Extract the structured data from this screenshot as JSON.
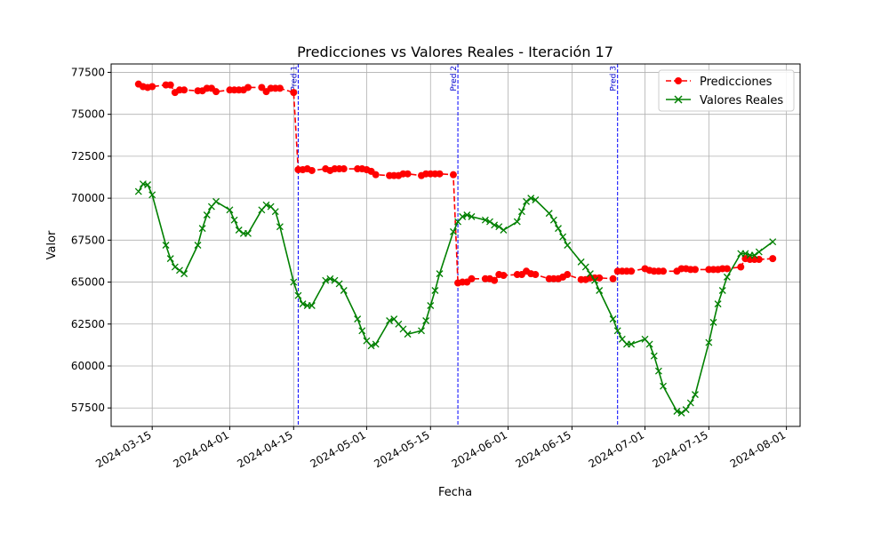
{
  "chart_data": {
    "type": "line",
    "title": "Predicciones vs Valores Reales - Iteración 17",
    "xlabel": "Fecha",
    "ylabel": "Valor",
    "xlim": [
      "2024-03-06",
      "2024-08-04"
    ],
    "ylim": [
      56400,
      78000
    ],
    "grid": true,
    "legend_position": "top-right",
    "x_ticks": [
      "2024-03-15",
      "2024-04-01",
      "2024-04-15",
      "2024-05-01",
      "2024-05-15",
      "2024-06-01",
      "2024-06-15",
      "2024-07-01",
      "2024-07-15",
      "2024-08-01"
    ],
    "y_ticks": [
      57500,
      60000,
      62500,
      65000,
      67500,
      70000,
      72500,
      75000,
      77500
    ],
    "vertical_lines": [
      {
        "date": "2024-04-16",
        "label": "Pred 1",
        "color": "#0000ff"
      },
      {
        "date": "2024-05-21",
        "label": "Pred 2",
        "color": "#0000ff"
      },
      {
        "date": "2024-06-25",
        "label": "Pred 3",
        "color": "#0000ff"
      }
    ],
    "series": [
      {
        "name": "Predicciones",
        "color": "#ff0000",
        "style": "dashed",
        "marker": "circle",
        "points": [
          [
            "2024-03-12",
            76800
          ],
          [
            "2024-03-13",
            76650
          ],
          [
            "2024-03-14",
            76600
          ],
          [
            "2024-03-15",
            76650
          ],
          [
            "2024-03-18",
            76750
          ],
          [
            "2024-03-19",
            76750
          ],
          [
            "2024-03-20",
            76300
          ],
          [
            "2024-03-21",
            76450
          ],
          [
            "2024-03-22",
            76450
          ],
          [
            "2024-03-25",
            76400
          ],
          [
            "2024-03-26",
            76400
          ],
          [
            "2024-03-27",
            76550
          ],
          [
            "2024-03-28",
            76550
          ],
          [
            "2024-03-29",
            76350
          ],
          [
            "2024-04-01",
            76450
          ],
          [
            "2024-04-02",
            76450
          ],
          [
            "2024-04-03",
            76450
          ],
          [
            "2024-04-04",
            76450
          ],
          [
            "2024-04-05",
            76600
          ],
          [
            "2024-04-08",
            76600
          ],
          [
            "2024-04-09",
            76350
          ],
          [
            "2024-04-10",
            76550
          ],
          [
            "2024-04-11",
            76550
          ],
          [
            "2024-04-12",
            76550
          ],
          [
            "2024-04-15",
            76300
          ],
          [
            "2024-04-16",
            71700
          ],
          [
            "2024-04-17",
            71700
          ],
          [
            "2024-04-18",
            71750
          ],
          [
            "2024-04-19",
            71650
          ],
          [
            "2024-04-22",
            71750
          ],
          [
            "2024-04-23",
            71650
          ],
          [
            "2024-04-24",
            71750
          ],
          [
            "2024-04-25",
            71750
          ],
          [
            "2024-04-26",
            71750
          ],
          [
            "2024-04-29",
            71750
          ],
          [
            "2024-04-30",
            71750
          ],
          [
            "2024-05-01",
            71700
          ],
          [
            "2024-05-02",
            71600
          ],
          [
            "2024-05-03",
            71400
          ],
          [
            "2024-05-06",
            71350
          ],
          [
            "2024-05-07",
            71350
          ],
          [
            "2024-05-08",
            71350
          ],
          [
            "2024-05-09",
            71450
          ],
          [
            "2024-05-10",
            71450
          ],
          [
            "2024-05-13",
            71350
          ],
          [
            "2024-05-14",
            71450
          ],
          [
            "2024-05-15",
            71450
          ],
          [
            "2024-05-16",
            71450
          ],
          [
            "2024-05-17",
            71450
          ],
          [
            "2024-05-20",
            71400
          ],
          [
            "2024-05-21",
            64950
          ],
          [
            "2024-05-22",
            65000
          ],
          [
            "2024-05-23",
            65000
          ],
          [
            "2024-05-24",
            65200
          ],
          [
            "2024-05-27",
            65200
          ],
          [
            "2024-05-28",
            65200
          ],
          [
            "2024-05-29",
            65100
          ],
          [
            "2024-05-30",
            65450
          ],
          [
            "2024-05-31",
            65400
          ],
          [
            "2024-06-03",
            65450
          ],
          [
            "2024-06-04",
            65450
          ],
          [
            "2024-06-05",
            65650
          ],
          [
            "2024-06-06",
            65500
          ],
          [
            "2024-06-07",
            65450
          ],
          [
            "2024-06-10",
            65200
          ],
          [
            "2024-06-11",
            65200
          ],
          [
            "2024-06-12",
            65200
          ],
          [
            "2024-06-13",
            65300
          ],
          [
            "2024-06-14",
            65450
          ],
          [
            "2024-06-17",
            65150
          ],
          [
            "2024-06-18",
            65150
          ],
          [
            "2024-06-19",
            65250
          ],
          [
            "2024-06-20",
            65250
          ],
          [
            "2024-06-21",
            65250
          ],
          [
            "2024-06-24",
            65200
          ],
          [
            "2024-06-25",
            65650
          ],
          [
            "2024-06-26",
            65650
          ],
          [
            "2024-06-27",
            65650
          ],
          [
            "2024-06-28",
            65650
          ],
          [
            "2024-07-01",
            65800
          ],
          [
            "2024-07-02",
            65700
          ],
          [
            "2024-07-03",
            65650
          ],
          [
            "2024-07-04",
            65650
          ],
          [
            "2024-07-05",
            65650
          ],
          [
            "2024-07-08",
            65650
          ],
          [
            "2024-07-09",
            65800
          ],
          [
            "2024-07-10",
            65800
          ],
          [
            "2024-07-11",
            65750
          ],
          [
            "2024-07-12",
            65750
          ],
          [
            "2024-07-15",
            65750
          ],
          [
            "2024-07-16",
            65750
          ],
          [
            "2024-07-17",
            65750
          ],
          [
            "2024-07-18",
            65800
          ],
          [
            "2024-07-19",
            65800
          ],
          [
            "2024-07-22",
            65900
          ],
          [
            "2024-07-23",
            66400
          ],
          [
            "2024-07-24",
            66350
          ],
          [
            "2024-07-25",
            66350
          ],
          [
            "2024-07-26",
            66350
          ],
          [
            "2024-07-29",
            66400
          ]
        ]
      },
      {
        "name": "Valores Reales",
        "color": "#008000",
        "style": "solid",
        "marker": "x",
        "points": [
          [
            "2024-03-12",
            70400
          ],
          [
            "2024-03-13",
            70850
          ],
          [
            "2024-03-14",
            70800
          ],
          [
            "2024-03-15",
            70200
          ],
          [
            "2024-03-18",
            67200
          ],
          [
            "2024-03-19",
            66400
          ],
          [
            "2024-03-20",
            65900
          ],
          [
            "2024-03-21",
            65700
          ],
          [
            "2024-03-22",
            65500
          ],
          [
            "2024-03-25",
            67200
          ],
          [
            "2024-03-26",
            68200
          ],
          [
            "2024-03-27",
            69000
          ],
          [
            "2024-03-28",
            69500
          ],
          [
            "2024-03-29",
            69800
          ],
          [
            "2024-04-01",
            69300
          ],
          [
            "2024-04-02",
            68700
          ],
          [
            "2024-04-03",
            68100
          ],
          [
            "2024-04-04",
            67900
          ],
          [
            "2024-04-05",
            67900
          ],
          [
            "2024-04-08",
            69300
          ],
          [
            "2024-04-09",
            69600
          ],
          [
            "2024-04-10",
            69500
          ],
          [
            "2024-04-11",
            69200
          ],
          [
            "2024-04-12",
            68300
          ],
          [
            "2024-04-15",
            65000
          ],
          [
            "2024-04-16",
            64200
          ],
          [
            "2024-04-17",
            63700
          ],
          [
            "2024-04-18",
            63600
          ],
          [
            "2024-04-19",
            63600
          ],
          [
            "2024-04-22",
            65100
          ],
          [
            "2024-04-23",
            65200
          ],
          [
            "2024-04-24",
            65100
          ],
          [
            "2024-04-25",
            64900
          ],
          [
            "2024-04-26",
            64500
          ],
          [
            "2024-04-29",
            62800
          ],
          [
            "2024-04-30",
            62100
          ],
          [
            "2024-05-01",
            61500
          ],
          [
            "2024-05-02",
            61200
          ],
          [
            "2024-05-03",
            61300
          ],
          [
            "2024-05-06",
            62700
          ],
          [
            "2024-05-07",
            62800
          ],
          [
            "2024-05-08",
            62500
          ],
          [
            "2024-05-09",
            62200
          ],
          [
            "2024-05-10",
            61900
          ],
          [
            "2024-05-13",
            62100
          ],
          [
            "2024-05-14",
            62700
          ],
          [
            "2024-05-15",
            63600
          ],
          [
            "2024-05-16",
            64500
          ],
          [
            "2024-05-17",
            65500
          ],
          [
            "2024-05-20",
            68000
          ],
          [
            "2024-05-21",
            68600
          ],
          [
            "2024-05-22",
            68900
          ],
          [
            "2024-05-23",
            69000
          ],
          [
            "2024-05-24",
            68900
          ],
          [
            "2024-05-27",
            68700
          ],
          [
            "2024-05-28",
            68600
          ],
          [
            "2024-05-29",
            68400
          ],
          [
            "2024-05-30",
            68300
          ],
          [
            "2024-05-31",
            68100
          ],
          [
            "2024-06-03",
            68600
          ],
          [
            "2024-06-04",
            69200
          ],
          [
            "2024-06-05",
            69800
          ],
          [
            "2024-06-06",
            70000
          ],
          [
            "2024-06-07",
            69900
          ],
          [
            "2024-06-10",
            69100
          ],
          [
            "2024-06-11",
            68700
          ],
          [
            "2024-06-12",
            68200
          ],
          [
            "2024-06-13",
            67700
          ],
          [
            "2024-06-14",
            67200
          ],
          [
            "2024-06-17",
            66200
          ],
          [
            "2024-06-18",
            65900
          ],
          [
            "2024-06-19",
            65500
          ],
          [
            "2024-06-20",
            65100
          ],
          [
            "2024-06-21",
            64500
          ],
          [
            "2024-06-24",
            62800
          ],
          [
            "2024-06-25",
            62100
          ],
          [
            "2024-06-26",
            61600
          ],
          [
            "2024-06-27",
            61300
          ],
          [
            "2024-06-28",
            61300
          ],
          [
            "2024-07-01",
            61600
          ],
          [
            "2024-07-02",
            61300
          ],
          [
            "2024-07-03",
            60600
          ],
          [
            "2024-07-04",
            59700
          ],
          [
            "2024-07-05",
            58800
          ],
          [
            "2024-07-08",
            57300
          ],
          [
            "2024-07-09",
            57200
          ],
          [
            "2024-07-10",
            57400
          ],
          [
            "2024-07-11",
            57800
          ],
          [
            "2024-07-12",
            58300
          ],
          [
            "2024-07-15",
            61400
          ],
          [
            "2024-07-16",
            62600
          ],
          [
            "2024-07-17",
            63700
          ],
          [
            "2024-07-18",
            64500
          ],
          [
            "2024-07-19",
            65300
          ],
          [
            "2024-07-22",
            66700
          ],
          [
            "2024-07-23",
            66700
          ],
          [
            "2024-07-24",
            66600
          ],
          [
            "2024-07-25",
            66600
          ],
          [
            "2024-07-26",
            66800
          ],
          [
            "2024-07-29",
            67400
          ]
        ]
      }
    ]
  }
}
